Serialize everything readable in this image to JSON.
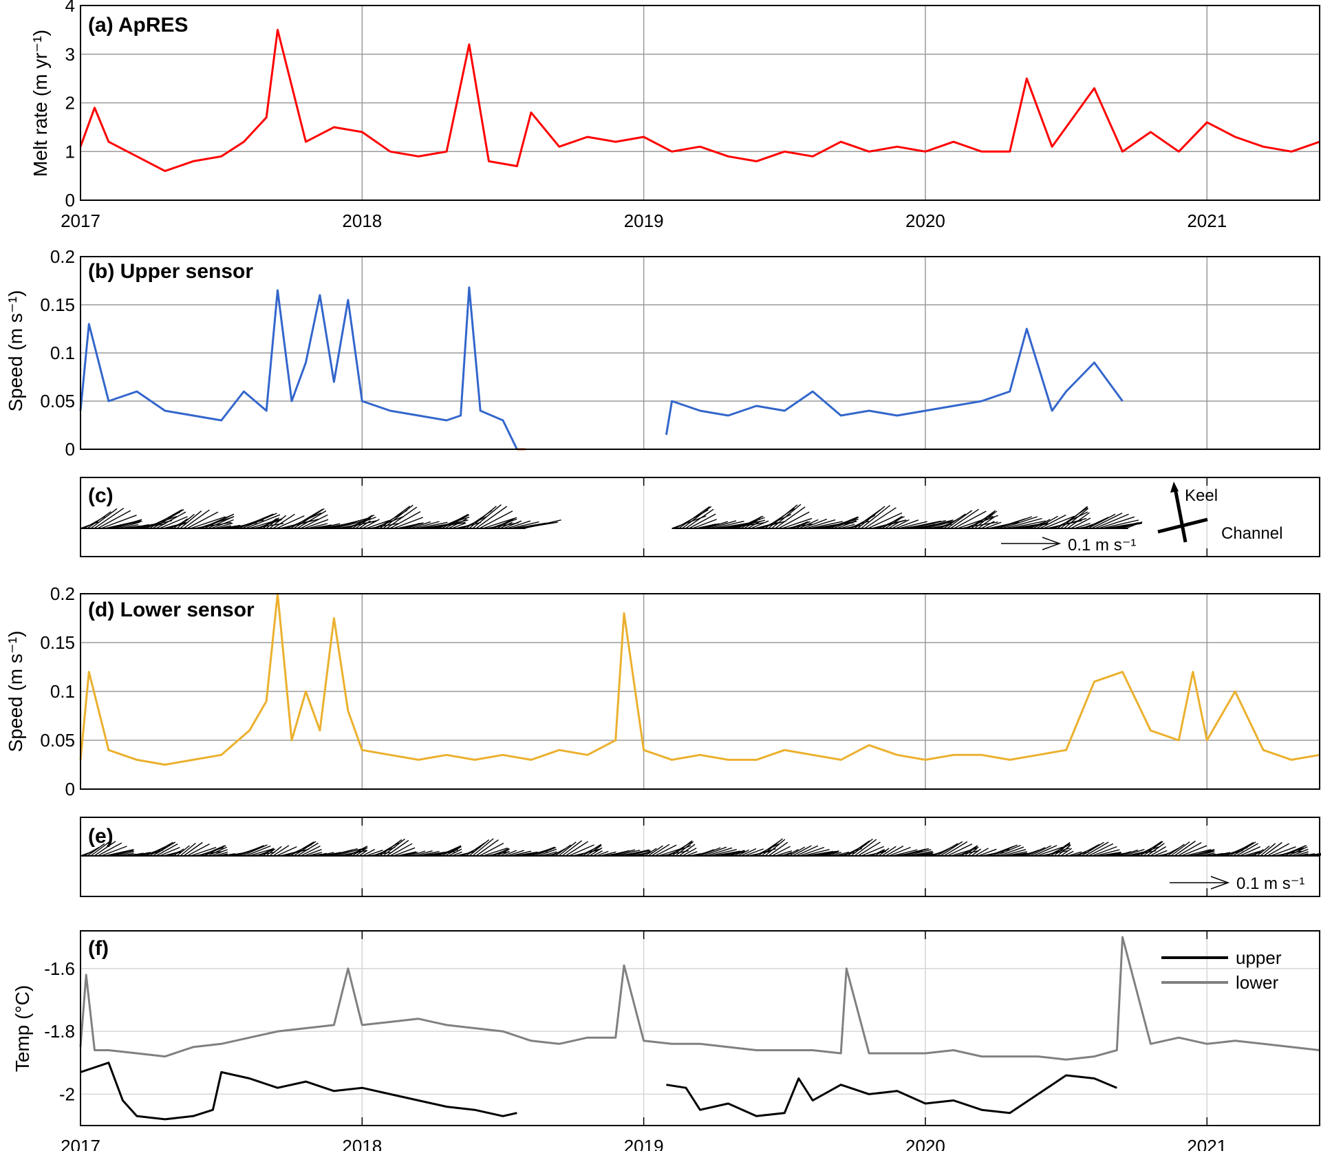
{
  "x_years": [
    "2017",
    "2018",
    "2019",
    "2020",
    "2021"
  ],
  "chart_data": [
    {
      "id": "a",
      "type": "line",
      "title": "(a) ApRES",
      "ylabel": "Melt rate (m yr⁻¹)",
      "xlim": [
        2017.0,
        2021.4
      ],
      "ylim": [
        0,
        4
      ],
      "yticks": [
        0,
        1,
        2,
        3,
        4
      ],
      "ytick_labels": [
        "0",
        "1",
        "2",
        "3",
        "4"
      ],
      "grid": true,
      "series": [
        {
          "color": "#ff0000",
          "x": [
            2017.0,
            2017.05,
            2017.1,
            2017.2,
            2017.3,
            2017.4,
            2017.5,
            2017.58,
            2017.66,
            2017.7,
            2017.8,
            2017.9,
            2018.0,
            2018.1,
            2018.2,
            2018.3,
            2018.38,
            2018.45,
            2018.55,
            2018.6,
            2018.7,
            2018.8,
            2018.9,
            2019.0,
            2019.1,
            2019.2,
            2019.3,
            2019.4,
            2019.5,
            2019.6,
            2019.7,
            2019.8,
            2019.9,
            2020.0,
            2020.1,
            2020.2,
            2020.3,
            2020.36,
            2020.45,
            2020.6,
            2020.7,
            2020.8,
            2020.9,
            2021.0,
            2021.1,
            2021.2,
            2021.3,
            2021.4
          ],
          "y": [
            1.1,
            1.9,
            1.2,
            0.9,
            0.6,
            0.8,
            0.9,
            1.2,
            1.7,
            3.5,
            1.2,
            1.5,
            1.4,
            1.0,
            0.9,
            1.0,
            3.2,
            0.8,
            0.7,
            1.8,
            1.1,
            1.3,
            1.2,
            1.3,
            1.0,
            1.1,
            0.9,
            0.8,
            1.0,
            0.9,
            1.2,
            1.0,
            1.1,
            1.0,
            1.2,
            1.0,
            1.0,
            2.5,
            1.1,
            2.3,
            1.0,
            1.4,
            1.0,
            1.6,
            1.3,
            1.1,
            1.0,
            1.2
          ]
        }
      ]
    },
    {
      "id": "b",
      "type": "line",
      "title": "(b) Upper sensor",
      "ylabel": "Speed (m s⁻¹)",
      "xlim": [
        2017.0,
        2021.4
      ],
      "ylim": [
        0,
        0.2
      ],
      "yticks": [
        0,
        0.05,
        0.1,
        0.15,
        0.2
      ],
      "ytick_labels": [
        "0",
        "0.05",
        "0.1",
        "0.15",
        "0.2"
      ],
      "grid": true,
      "series": [
        {
          "color": "#3366cc",
          "x": [
            2017.0,
            2017.03,
            2017.1,
            2017.2,
            2017.3,
            2017.4,
            2017.5,
            2017.58,
            2017.66,
            2017.7,
            2017.75,
            2017.8,
            2017.85,
            2017.9,
            2017.95,
            2018.0,
            2018.1,
            2018.2,
            2018.3,
            2018.35,
            2018.38,
            2018.42,
            2018.5,
            2018.55
          ],
          "y": [
            0.04,
            0.13,
            0.05,
            0.06,
            0.04,
            0.035,
            0.03,
            0.06,
            0.04,
            0.165,
            0.05,
            0.09,
            0.16,
            0.07,
            0.155,
            0.05,
            0.04,
            0.035,
            0.03,
            0.035,
            0.168,
            0.04,
            0.03,
            0.0
          ]
        },
        {
          "color": "#3366cc",
          "x": [
            2019.08,
            2019.1,
            2019.2,
            2019.3,
            2019.4,
            2019.5,
            2019.6,
            2019.7,
            2019.8,
            2019.9,
            2020.0,
            2020.1,
            2020.2,
            2020.3,
            2020.36,
            2020.45,
            2020.5,
            2020.6,
            2020.7
          ],
          "y": [
            0.015,
            0.05,
            0.04,
            0.035,
            0.045,
            0.04,
            0.06,
            0.035,
            0.04,
            0.035,
            0.04,
            0.045,
            0.05,
            0.06,
            0.125,
            0.04,
            0.06,
            0.09,
            0.05
          ]
        },
        {
          "color": "#e8601c",
          "x": [
            2018.55,
            2018.58
          ],
          "y": [
            0.0,
            0.0
          ]
        }
      ]
    },
    {
      "id": "c",
      "type": "vector",
      "title": "(c)",
      "xlim": [
        2017.0,
        2021.4
      ],
      "scale_label": "0.1 m s⁻¹",
      "compass_labels": [
        "Keel",
        "Channel"
      ],
      "segments": [
        [
          2017.0,
          2018.58
        ],
        [
          2019.1,
          2020.72
        ]
      ]
    },
    {
      "id": "d",
      "type": "line",
      "title": "(d) Lower sensor",
      "ylabel": "Speed (m s⁻¹)",
      "xlim": [
        2017.0,
        2021.4
      ],
      "ylim": [
        0,
        0.2
      ],
      "yticks": [
        0,
        0.05,
        0.1,
        0.15,
        0.2
      ],
      "ytick_labels": [
        "0",
        "0.05",
        "0.1",
        "0.15",
        "0.2"
      ],
      "grid": true,
      "series": [
        {
          "color": "#ebb02e",
          "x": [
            2017.0,
            2017.03,
            2017.1,
            2017.2,
            2017.3,
            2017.4,
            2017.5,
            2017.6,
            2017.66,
            2017.7,
            2017.75,
            2017.8,
            2017.85,
            2017.9,
            2017.95,
            2018.0,
            2018.1,
            2018.2,
            2018.3,
            2018.4,
            2018.5,
            2018.6,
            2018.7,
            2018.8,
            2018.9,
            2018.93,
            2019.0,
            2019.1,
            2019.2,
            2019.3,
            2019.4,
            2019.5,
            2019.6,
            2019.7,
            2019.8,
            2019.9,
            2020.0,
            2020.1,
            2020.2,
            2020.3,
            2020.4,
            2020.5,
            2020.6,
            2020.7,
            2020.8,
            2020.9,
            2020.95,
            2021.0,
            2021.1,
            2021.2,
            2021.3,
            2021.4
          ],
          "y": [
            0.03,
            0.12,
            0.04,
            0.03,
            0.025,
            0.03,
            0.035,
            0.06,
            0.09,
            0.2,
            0.05,
            0.1,
            0.06,
            0.175,
            0.08,
            0.04,
            0.035,
            0.03,
            0.035,
            0.03,
            0.035,
            0.03,
            0.04,
            0.035,
            0.05,
            0.18,
            0.04,
            0.03,
            0.035,
            0.03,
            0.03,
            0.04,
            0.035,
            0.03,
            0.045,
            0.035,
            0.03,
            0.035,
            0.035,
            0.03,
            0.035,
            0.04,
            0.11,
            0.12,
            0.06,
            0.05,
            0.12,
            0.05,
            0.1,
            0.04,
            0.03,
            0.035
          ]
        }
      ]
    },
    {
      "id": "e",
      "type": "vector",
      "title": "(e)",
      "xlim": [
        2017.0,
        2021.4
      ],
      "scale_label": "0.1 m s⁻¹",
      "segments": [
        [
          2017.0,
          2021.4
        ]
      ]
    },
    {
      "id": "f",
      "type": "line",
      "title": "(f)",
      "ylabel": "Temp (°C)",
      "xlim": [
        2017.0,
        2021.4
      ],
      "ylim": [
        -2.1,
        -1.48
      ],
      "yticks": [
        -2.0,
        -1.8,
        -1.6
      ],
      "ytick_labels": [
        "-2",
        "-1.8",
        "-1.6"
      ],
      "grid": true,
      "legend_position": "top-right",
      "series": [
        {
          "name": "upper",
          "color": "#000000",
          "x": [
            2017.0,
            2017.1,
            2017.15,
            2017.2,
            2017.3,
            2017.4,
            2017.47,
            2017.5,
            2017.6,
            2017.7,
            2017.8,
            2017.9,
            2018.0,
            2018.1,
            2018.2,
            2018.3,
            2018.4,
            2018.5,
            2018.55
          ],
          "y": [
            -1.93,
            -1.9,
            -2.02,
            -2.07,
            -2.08,
            -2.07,
            -2.05,
            -1.93,
            -1.95,
            -1.98,
            -1.96,
            -1.99,
            -1.98,
            -2.0,
            -2.02,
            -2.04,
            -2.05,
            -2.07,
            -2.06
          ]
        },
        {
          "name": "upper",
          "color": "#000000",
          "x": [
            2019.08,
            2019.15,
            2019.2,
            2019.3,
            2019.4,
            2019.5,
            2019.55,
            2019.6,
            2019.7,
            2019.8,
            2019.9,
            2020.0,
            2020.1,
            2020.2,
            2020.3,
            2020.4,
            2020.5,
            2020.6,
            2020.68
          ],
          "y": [
            -1.97,
            -1.98,
            -2.05,
            -2.03,
            -2.07,
            -2.06,
            -1.95,
            -2.02,
            -1.97,
            -2.0,
            -1.99,
            -2.03,
            -2.02,
            -2.05,
            -2.06,
            -2.0,
            -1.94,
            -1.95,
            -1.98
          ]
        },
        {
          "name": "lower",
          "color": "#808080",
          "x": [
            2017.0,
            2017.02,
            2017.05,
            2017.1,
            2017.2,
            2017.3,
            2017.4,
            2017.5,
            2017.6,
            2017.7,
            2017.8,
            2017.9,
            2017.95,
            2018.0,
            2018.1,
            2018.2,
            2018.3,
            2018.4,
            2018.5,
            2018.6,
            2018.7,
            2018.8,
            2018.9,
            2018.93,
            2019.0,
            2019.1,
            2019.2,
            2019.3,
            2019.4,
            2019.5,
            2019.6,
            2019.7,
            2019.72,
            2019.8,
            2019.9,
            2020.0,
            2020.1,
            2020.2,
            2020.3,
            2020.4,
            2020.5,
            2020.6,
            2020.68,
            2020.7,
            2020.8,
            2020.9,
            2021.0,
            2021.1,
            2021.2,
            2021.3,
            2021.4
          ],
          "y": [
            -1.85,
            -1.62,
            -1.86,
            -1.86,
            -1.87,
            -1.88,
            -1.85,
            -1.84,
            -1.82,
            -1.8,
            -1.79,
            -1.78,
            -1.6,
            -1.78,
            -1.77,
            -1.76,
            -1.78,
            -1.79,
            -1.8,
            -1.83,
            -1.84,
            -1.82,
            -1.82,
            -1.59,
            -1.83,
            -1.84,
            -1.84,
            -1.85,
            -1.86,
            -1.86,
            -1.86,
            -1.87,
            -1.6,
            -1.87,
            -1.87,
            -1.87,
            -1.86,
            -1.88,
            -1.88,
            -1.88,
            -1.89,
            -1.88,
            -1.86,
            -1.5,
            -1.84,
            -1.82,
            -1.84,
            -1.83,
            -1.84,
            -1.85,
            -1.86
          ]
        }
      ]
    }
  ]
}
